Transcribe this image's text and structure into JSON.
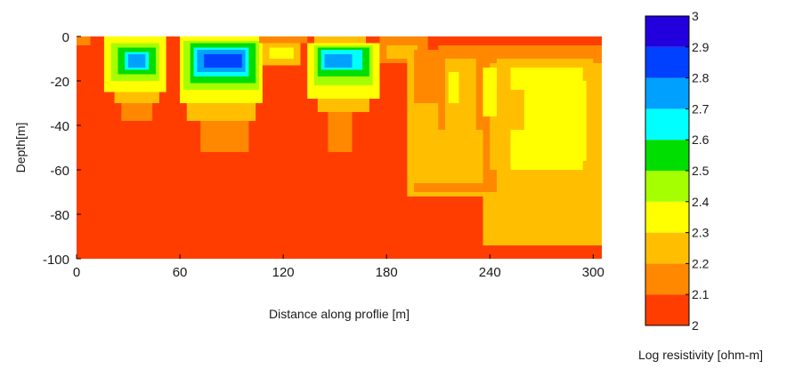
{
  "chart_data": {
    "type": "heatmap",
    "title": "",
    "xlabel": "Distance along proflie [m]",
    "ylabel": "Depth[m]",
    "xlim": [
      0,
      305
    ],
    "ylim": [
      -100,
      0
    ],
    "x_ticks": [
      0,
      60,
      120,
      180,
      240,
      300
    ],
    "y_ticks": [
      0,
      -20,
      -40,
      -60,
      -80,
      -100
    ],
    "x_tick_labels": [
      "0",
      "60",
      "120",
      "180",
      "240",
      "300"
    ],
    "y_tick_labels": [
      "0",
      "-20",
      "-40",
      "-60",
      "-80",
      "-100"
    ],
    "grid": false,
    "colorbar": {
      "label": "Log resistivity [ohm-m]",
      "min": 2,
      "max": 3,
      "ticks": [
        2,
        2.1,
        2.2,
        2.3,
        2.4,
        2.5,
        2.6,
        2.7,
        2.8,
        2.9,
        3
      ],
      "tick_labels": [
        "2",
        "2.1",
        "2.2",
        "2.3",
        "2.4",
        "2.5",
        "2.6",
        "2.7",
        "2.8",
        "2.9",
        "3"
      ],
      "levels": [
        {
          "from": 2.0,
          "to": 2.1,
          "color": "#ff3d00"
        },
        {
          "from": 2.1,
          "to": 2.2,
          "color": "#ff8800"
        },
        {
          "from": 2.2,
          "to": 2.3,
          "color": "#ffbf00"
        },
        {
          "from": 2.3,
          "to": 2.4,
          "color": "#ffff00"
        },
        {
          "from": 2.4,
          "to": 2.5,
          "color": "#a6ff00"
        },
        {
          "from": 2.5,
          "to": 2.6,
          "color": "#00dd00"
        },
        {
          "from": 2.6,
          "to": 2.7,
          "color": "#00ffff"
        },
        {
          "from": 2.7,
          "to": 2.8,
          "color": "#00a0ff"
        },
        {
          "from": 2.8,
          "to": 2.9,
          "color": "#0040ff"
        },
        {
          "from": 2.9,
          "to": 3.0,
          "color": "#2200dd"
        }
      ]
    },
    "background_value": 2.05,
    "cells": [
      {
        "x0": 0,
        "x1": 8,
        "y0": 0,
        "y1": -4,
        "v": 2.15
      },
      {
        "x0": 16,
        "x1": 52,
        "y0": 0,
        "y1": -25,
        "v": 2.35
      },
      {
        "x0": 22,
        "x1": 48,
        "y0": -25,
        "y1": -30,
        "v": 2.25
      },
      {
        "x0": 26,
        "x1": 44,
        "y0": -30,
        "y1": -38,
        "v": 2.15
      },
      {
        "x0": 20,
        "x1": 48,
        "y0": -3,
        "y1": -20,
        "v": 2.45
      },
      {
        "x0": 24,
        "x1": 46,
        "y0": -5,
        "y1": -17,
        "v": 2.55
      },
      {
        "x0": 28,
        "x1": 42,
        "y0": -7,
        "y1": -15,
        "v": 2.65
      },
      {
        "x0": 30,
        "x1": 40,
        "y0": -8,
        "y1": -14,
        "v": 2.75
      },
      {
        "x0": 60,
        "x1": 108,
        "y0": 0,
        "y1": -30,
        "v": 2.35
      },
      {
        "x0": 64,
        "x1": 104,
        "y0": -30,
        "y1": -38,
        "v": 2.25
      },
      {
        "x0": 72,
        "x1": 100,
        "y0": -38,
        "y1": -52,
        "v": 2.15
      },
      {
        "x0": 62,
        "x1": 106,
        "y0": -2,
        "y1": -24,
        "v": 2.45
      },
      {
        "x0": 66,
        "x1": 104,
        "y0": -3,
        "y1": -21,
        "v": 2.55
      },
      {
        "x0": 68,
        "x1": 100,
        "y0": -5,
        "y1": -18,
        "v": 2.65
      },
      {
        "x0": 70,
        "x1": 98,
        "y0": -6,
        "y1": -16,
        "v": 2.75
      },
      {
        "x0": 74,
        "x1": 96,
        "y0": -8,
        "y1": -14,
        "v": 2.85
      },
      {
        "x0": 108,
        "x1": 130,
        "y0": -3,
        "y1": -13,
        "v": 2.2
      },
      {
        "x0": 112,
        "x1": 126,
        "y0": -5,
        "y1": -10,
        "v": 2.3
      },
      {
        "x0": 106,
        "x1": 134,
        "y0": 0,
        "y1": -3,
        "v": 2.15
      },
      {
        "x0": 138,
        "x1": 168,
        "y0": 0,
        "y1": -4,
        "v": 2.2
      },
      {
        "x0": 134,
        "x1": 176,
        "y0": -3,
        "y1": -28,
        "v": 2.35
      },
      {
        "x0": 140,
        "x1": 170,
        "y0": -28,
        "y1": -34,
        "v": 2.25
      },
      {
        "x0": 146,
        "x1": 160,
        "y0": -34,
        "y1": -52,
        "v": 2.15
      },
      {
        "x0": 138,
        "x1": 172,
        "y0": -4,
        "y1": -22,
        "v": 2.45
      },
      {
        "x0": 140,
        "x1": 170,
        "y0": -5,
        "y1": -18,
        "v": 2.55
      },
      {
        "x0": 142,
        "x1": 166,
        "y0": -6,
        "y1": -15,
        "v": 2.65
      },
      {
        "x0": 144,
        "x1": 160,
        "y0": -8,
        "y1": -14,
        "v": 2.75
      },
      {
        "x0": 176,
        "x1": 204,
        "y0": 0,
        "y1": -12,
        "v": 2.15
      },
      {
        "x0": 180,
        "x1": 198,
        "y0": -4,
        "y1": -10,
        "v": 2.25
      },
      {
        "x0": 192,
        "x1": 305,
        "y0": -8,
        "y1": -72,
        "v": 2.25
      },
      {
        "x0": 196,
        "x1": 210,
        "y0": -6,
        "y1": -30,
        "v": 2.15
      },
      {
        "x0": 210,
        "x1": 305,
        "y0": -4,
        "y1": -70,
        "v": 2.15
      },
      {
        "x0": 234,
        "x1": 244,
        "y0": -5,
        "y1": -12,
        "v": 2.15
      },
      {
        "x0": 214,
        "x1": 232,
        "y0": -10,
        "y1": -42,
        "v": 2.25
      },
      {
        "x0": 240,
        "x1": 305,
        "y0": -12,
        "y1": -70,
        "v": 2.2
      },
      {
        "x0": 244,
        "x1": 300,
        "y0": -10,
        "y1": -68,
        "v": 2.25
      },
      {
        "x0": 216,
        "x1": 222,
        "y0": -16,
        "y1": -30,
        "v": 2.3
      },
      {
        "x0": 236,
        "x1": 244,
        "y0": -14,
        "y1": -36,
        "v": 2.3
      },
      {
        "x0": 252,
        "x1": 294,
        "y0": -14,
        "y1": -60,
        "v": 2.3
      },
      {
        "x0": 258,
        "x1": 296,
        "y0": -20,
        "y1": -56,
        "v": 2.35
      },
      {
        "x0": 248,
        "x1": 260,
        "y0": -24,
        "y1": -42,
        "v": 2.25
      },
      {
        "x0": 196,
        "x1": 236,
        "y0": -42,
        "y1": -66,
        "v": 2.25
      },
      {
        "x0": 236,
        "x1": 305,
        "y0": -70,
        "y1": -94,
        "v": 2.2
      },
      {
        "x0": 236,
        "x1": 244,
        "y0": -60,
        "y1": -70,
        "v": 2.15
      },
      {
        "x0": 196,
        "x1": 228,
        "y0": -66,
        "y1": -70,
        "v": 2.15
      }
    ]
  }
}
